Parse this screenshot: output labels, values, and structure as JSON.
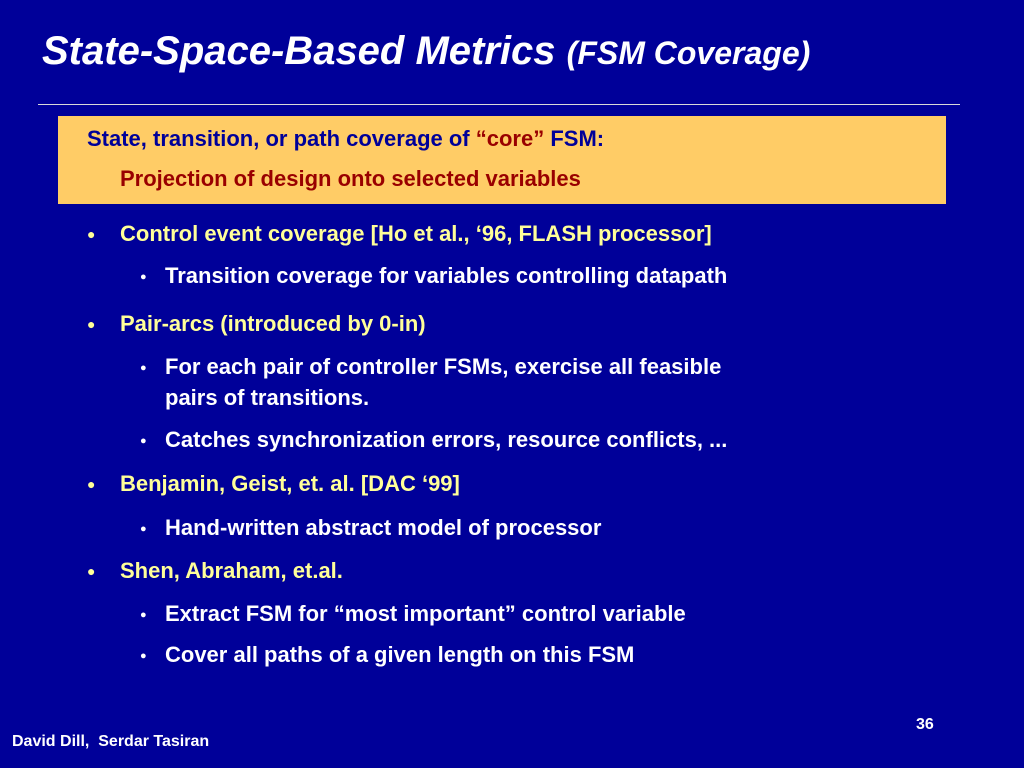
{
  "title": {
    "main": "State-Space-Based Metrics",
    "sub": "(FSM Coverage)"
  },
  "highlight": {
    "line1_prefix": "State, transition, or path coverage of ",
    "line1_core": "“core”",
    "line1_suffix": " FSM:",
    "line2": "Projection of design onto selected variables"
  },
  "bullets": [
    {
      "text": "Control event coverage [Ho et al., ‘96, FLASH processor]",
      "sub": [
        "Transition coverage for variables controlling datapath"
      ]
    },
    {
      "text": "Pair-arcs (introduced by 0-in)",
      "sub": [
        "For each pair of controller FSMs, exercise all feasible",
        "pairs of transitions.",
        "Catches synchronization errors, resource conflicts, ..."
      ]
    },
    {
      "text": "Benjamin, Geist, et. al. [DAC ‘99]",
      "sub": [
        "Hand-written abstract model of processor"
      ]
    },
    {
      "text": "Shen, Abraham, et.al.",
      "sub": [
        "Extract FSM for “most important” control variable",
        "Cover all paths of a given length on this FSM"
      ]
    }
  ],
  "footer": {
    "authors": "David Dill,  Serdar Tasiran",
    "page": "36"
  },
  "colors": {
    "background": "#000099",
    "title": "#ffffff",
    "highlight_bg": "#ffcc66",
    "highlight_text": "#000099",
    "highlight_accent": "#990000",
    "bullet_l1": "#ffff99",
    "bullet_l2": "#ffffff"
  }
}
